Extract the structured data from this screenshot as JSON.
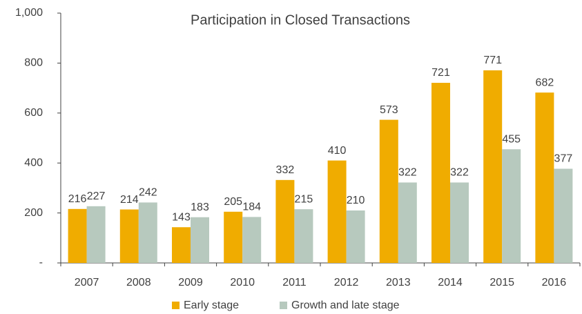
{
  "chart_data": {
    "type": "bar",
    "title": "Participation in Closed Transactions",
    "categories": [
      "2007",
      "2008",
      "2009",
      "2010",
      "2011",
      "2012",
      "2013",
      "2014",
      "2015",
      "2016"
    ],
    "series": [
      {
        "name": "Early stage",
        "color": "#f0ac00",
        "values": [
          216,
          214,
          143,
          205,
          332,
          410,
          573,
          721,
          771,
          682
        ]
      },
      {
        "name": "Growth and late stage",
        "color": "#b7c9be",
        "values": [
          227,
          242,
          183,
          184,
          215,
          210,
          322,
          322,
          455,
          377
        ]
      }
    ],
    "ylim": [
      0,
      1000
    ],
    "yticks": [
      {
        "value": 0,
        "label": "-"
      },
      200,
      400,
      600,
      800,
      {
        "value": 1000,
        "label": "1,000"
      }
    ],
    "grid": false,
    "legend": "bottom"
  }
}
